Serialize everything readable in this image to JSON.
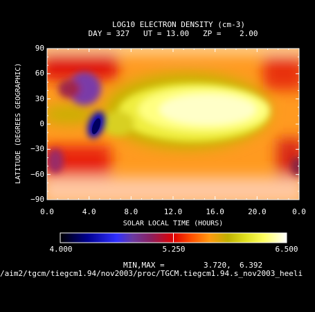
{
  "chart_data": {
    "type": "heatmap",
    "title": "LOG10 ELECTRON DENSITY (cm-3)",
    "subtitle": "DAY = 327   UT = 13.00   ZP =    2.00",
    "xlabel": "SOLAR LOCAL TIME (HOURS)",
    "ylabel": "LATITUDE (DEGREES GEOGRAPHIC)",
    "xlim": [
      0,
      24
    ],
    "ylim": [
      -90,
      90
    ],
    "x_ticks": [
      "0.0",
      "4.0",
      "8.0",
      "12.0",
      "16.0",
      "20.0",
      "0.0"
    ],
    "y_ticks": [
      "90",
      "60",
      "30",
      "0",
      "−30",
      "−60",
      "−90"
    ],
    "colorbar": {
      "min": 4.0,
      "max": 6.5,
      "tick_labels": [
        "4.000",
        "5.250",
        "6.500"
      ]
    },
    "minmax_label": "MIN,MAX =",
    "min_value": "3.720,",
    "max_value": "6.392",
    "features": [
      {
        "x": 4.8,
        "y": 5,
        "value": 3.72
      },
      {
        "x": 4.2,
        "y": 40,
        "value": 4.9
      },
      {
        "x": 14.5,
        "y": 0,
        "value": 6.39
      },
      {
        "x": 18.5,
        "y": 10,
        "value": 6.3
      }
    ]
  },
  "footer_path": "/aim2/tgcm/tiegcm1.94/nov2003/proc/TGCM.tiegcm1.94.s_nov2003_heeli"
}
